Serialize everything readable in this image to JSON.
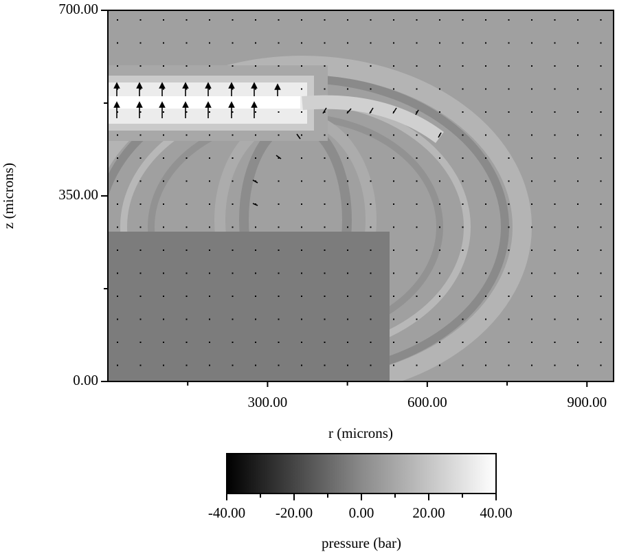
{
  "chart_data": {
    "type": "field",
    "x_label": "r (microns)",
    "y_label": "z (microns)",
    "xlim": [
      0,
      950
    ],
    "ylim": [
      0,
      700
    ],
    "xticks": [
      {
        "value": 300,
        "label": "300.00"
      },
      {
        "value": 600,
        "label": "600.00"
      },
      {
        "value": 900,
        "label": "900.00"
      }
    ],
    "xminor_ticks": [
      150,
      450,
      750
    ],
    "yticks": [
      {
        "value": 0,
        "label": "0.00"
      },
      {
        "value": 350,
        "label": "350.00"
      },
      {
        "value": 700,
        "label": "700.00"
      }
    ],
    "yminor_ticks": [
      175,
      525
    ],
    "colorbar": {
      "label": "pressure (bar)",
      "lim": [
        -40,
        40
      ],
      "ticks": [
        {
          "value": -40,
          "label": "-40.00"
        },
        {
          "value": -20,
          "label": "-20.00"
        },
        {
          "value": 0,
          "label": "0.00"
        },
        {
          "value": 20,
          "label": "20.00"
        },
        {
          "value": 40,
          "label": "40.00"
        }
      ],
      "minor_ticks": [
        -30,
        -10,
        10,
        30
      ]
    }
  }
}
